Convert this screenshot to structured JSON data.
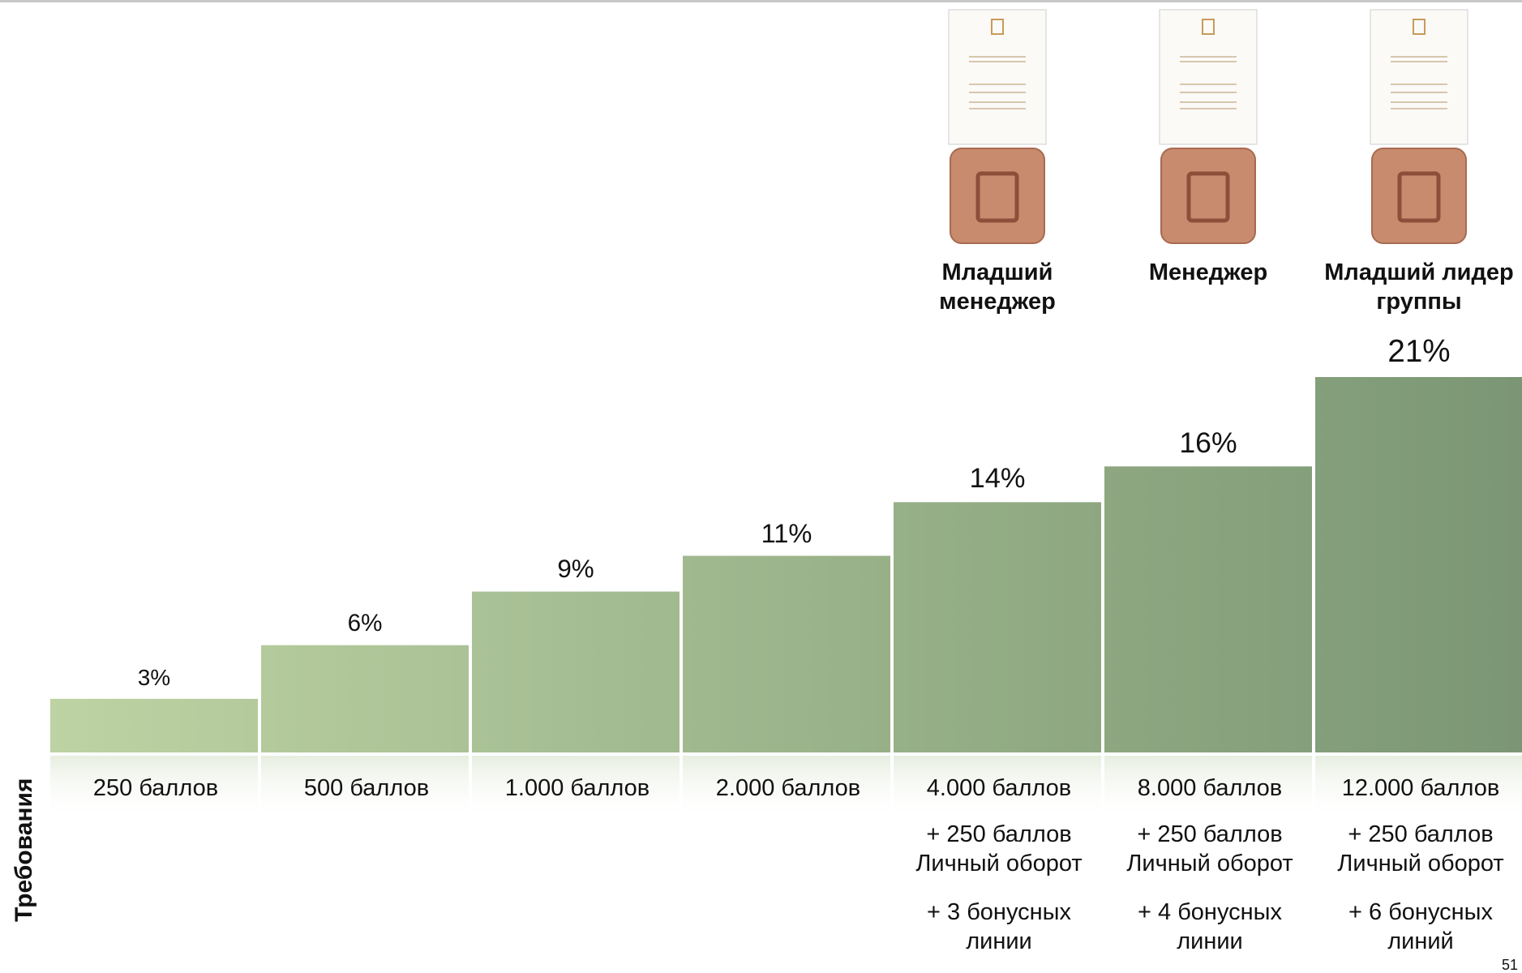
{
  "chart_data": {
    "type": "bar",
    "categories": [
      "250 баллов",
      "500 баллов",
      "1.000 баллов",
      "2.000 баллов",
      "4.000 баллов",
      "8.000 баллов",
      "12.000 баллов"
    ],
    "values": [
      3,
      6,
      9,
      11,
      14,
      16,
      21
    ],
    "value_labels": [
      "3%",
      "6%",
      "9%",
      "11%",
      "14%",
      "16%",
      "21%"
    ],
    "color_start": "#bdd3a3",
    "color_end": "#7b9674",
    "ranks": [
      null,
      null,
      null,
      null,
      "Младший менеджер",
      "Менеджер",
      "Младший лидер группы"
    ],
    "requirements": [
      [],
      [],
      [],
      [],
      [
        "+ 250 баллов",
        "Личный оборот",
        "+ 3 бонусных",
        "линии"
      ],
      [
        "+ 250 баллов",
        "Личный оборот",
        "+ 4 бонусных",
        "линии"
      ],
      [
        "+ 250 баллов",
        "Личный оборот",
        "+ 6 бонусных",
        "линий"
      ]
    ],
    "requirements_label": "Требования",
    "page_number": "51"
  }
}
